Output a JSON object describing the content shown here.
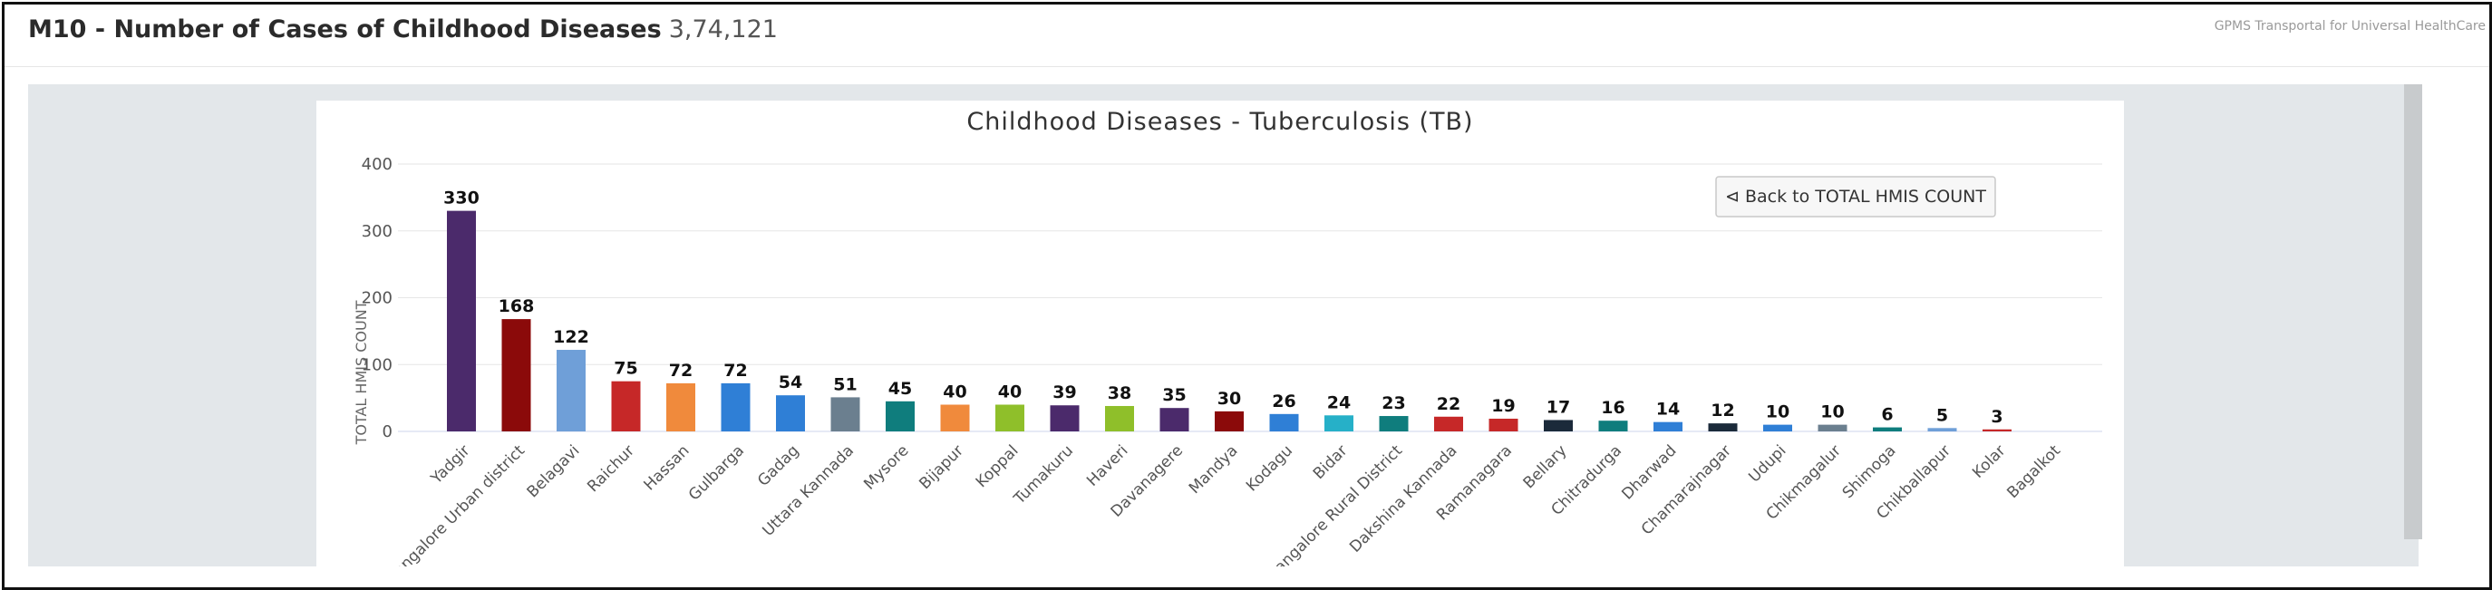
{
  "header": {
    "title": "M10 - Number of Cases of Childhood Diseases",
    "count": "3,74,121",
    "brand": "GPMS Transportal for Universal HealthCare"
  },
  "chart": {
    "back_button": "⊲ Back to TOTAL HMIS COUNT"
  },
  "chart_data": {
    "type": "bar",
    "title": "Childhood Diseases - Tuberculosis (TB)",
    "xlabel": "",
    "ylabel": "TOTAL HMIS COUNT",
    "ylim": [
      0,
      400
    ],
    "yticks": [
      0,
      100,
      200,
      300,
      400
    ],
    "grid": true,
    "categories": [
      "Yadgir",
      "Bangalore Urban district",
      "Belagavi",
      "Raichur",
      "Hassan",
      "Gulbarga",
      "Gadag",
      "Uttara Kannada",
      "Mysore",
      "Bijapur",
      "Koppal",
      "Tumakuru",
      "Haveri",
      "Davanagere",
      "Mandya",
      "Kodagu",
      "Bidar",
      "Bangalore Rural District",
      "Dakshina Kannada",
      "Ramanagara",
      "Bellary",
      "Chitradurga",
      "Dharwad",
      "Chamarajnagar",
      "Udupi",
      "Chikmagalur",
      "Shimoga",
      "Chikballapur",
      "Kolar",
      "Bagalkot"
    ],
    "values": [
      330,
      168,
      122,
      75,
      72,
      72,
      54,
      51,
      45,
      40,
      40,
      39,
      38,
      35,
      30,
      26,
      24,
      23,
      22,
      19,
      17,
      16,
      14,
      12,
      10,
      10,
      6,
      5,
      3,
      null
    ],
    "colors": [
      "#4b2a6b",
      "#8b0a0a",
      "#6f9fd8",
      "#c62828",
      "#f08a3c",
      "#2f7fd6",
      "#2f7fd6",
      "#6b7f8f",
      "#0f7d7d",
      "#f08a3c",
      "#8fbf2a",
      "#4b2a6b",
      "#8fbf2a",
      "#4b2a6b",
      "#8b0a0a",
      "#2f7fd6",
      "#26b0c8",
      "#0f7d7d",
      "#c62828",
      "#c62828",
      "#1b2a3a",
      "#0f7d7d",
      "#2f7fd6",
      "#1b2a3a",
      "#2f7fd6",
      "#6b7f8f",
      "#0f7d7d",
      "#6f9fd8",
      "#c62828",
      "#8fbf2a"
    ]
  }
}
